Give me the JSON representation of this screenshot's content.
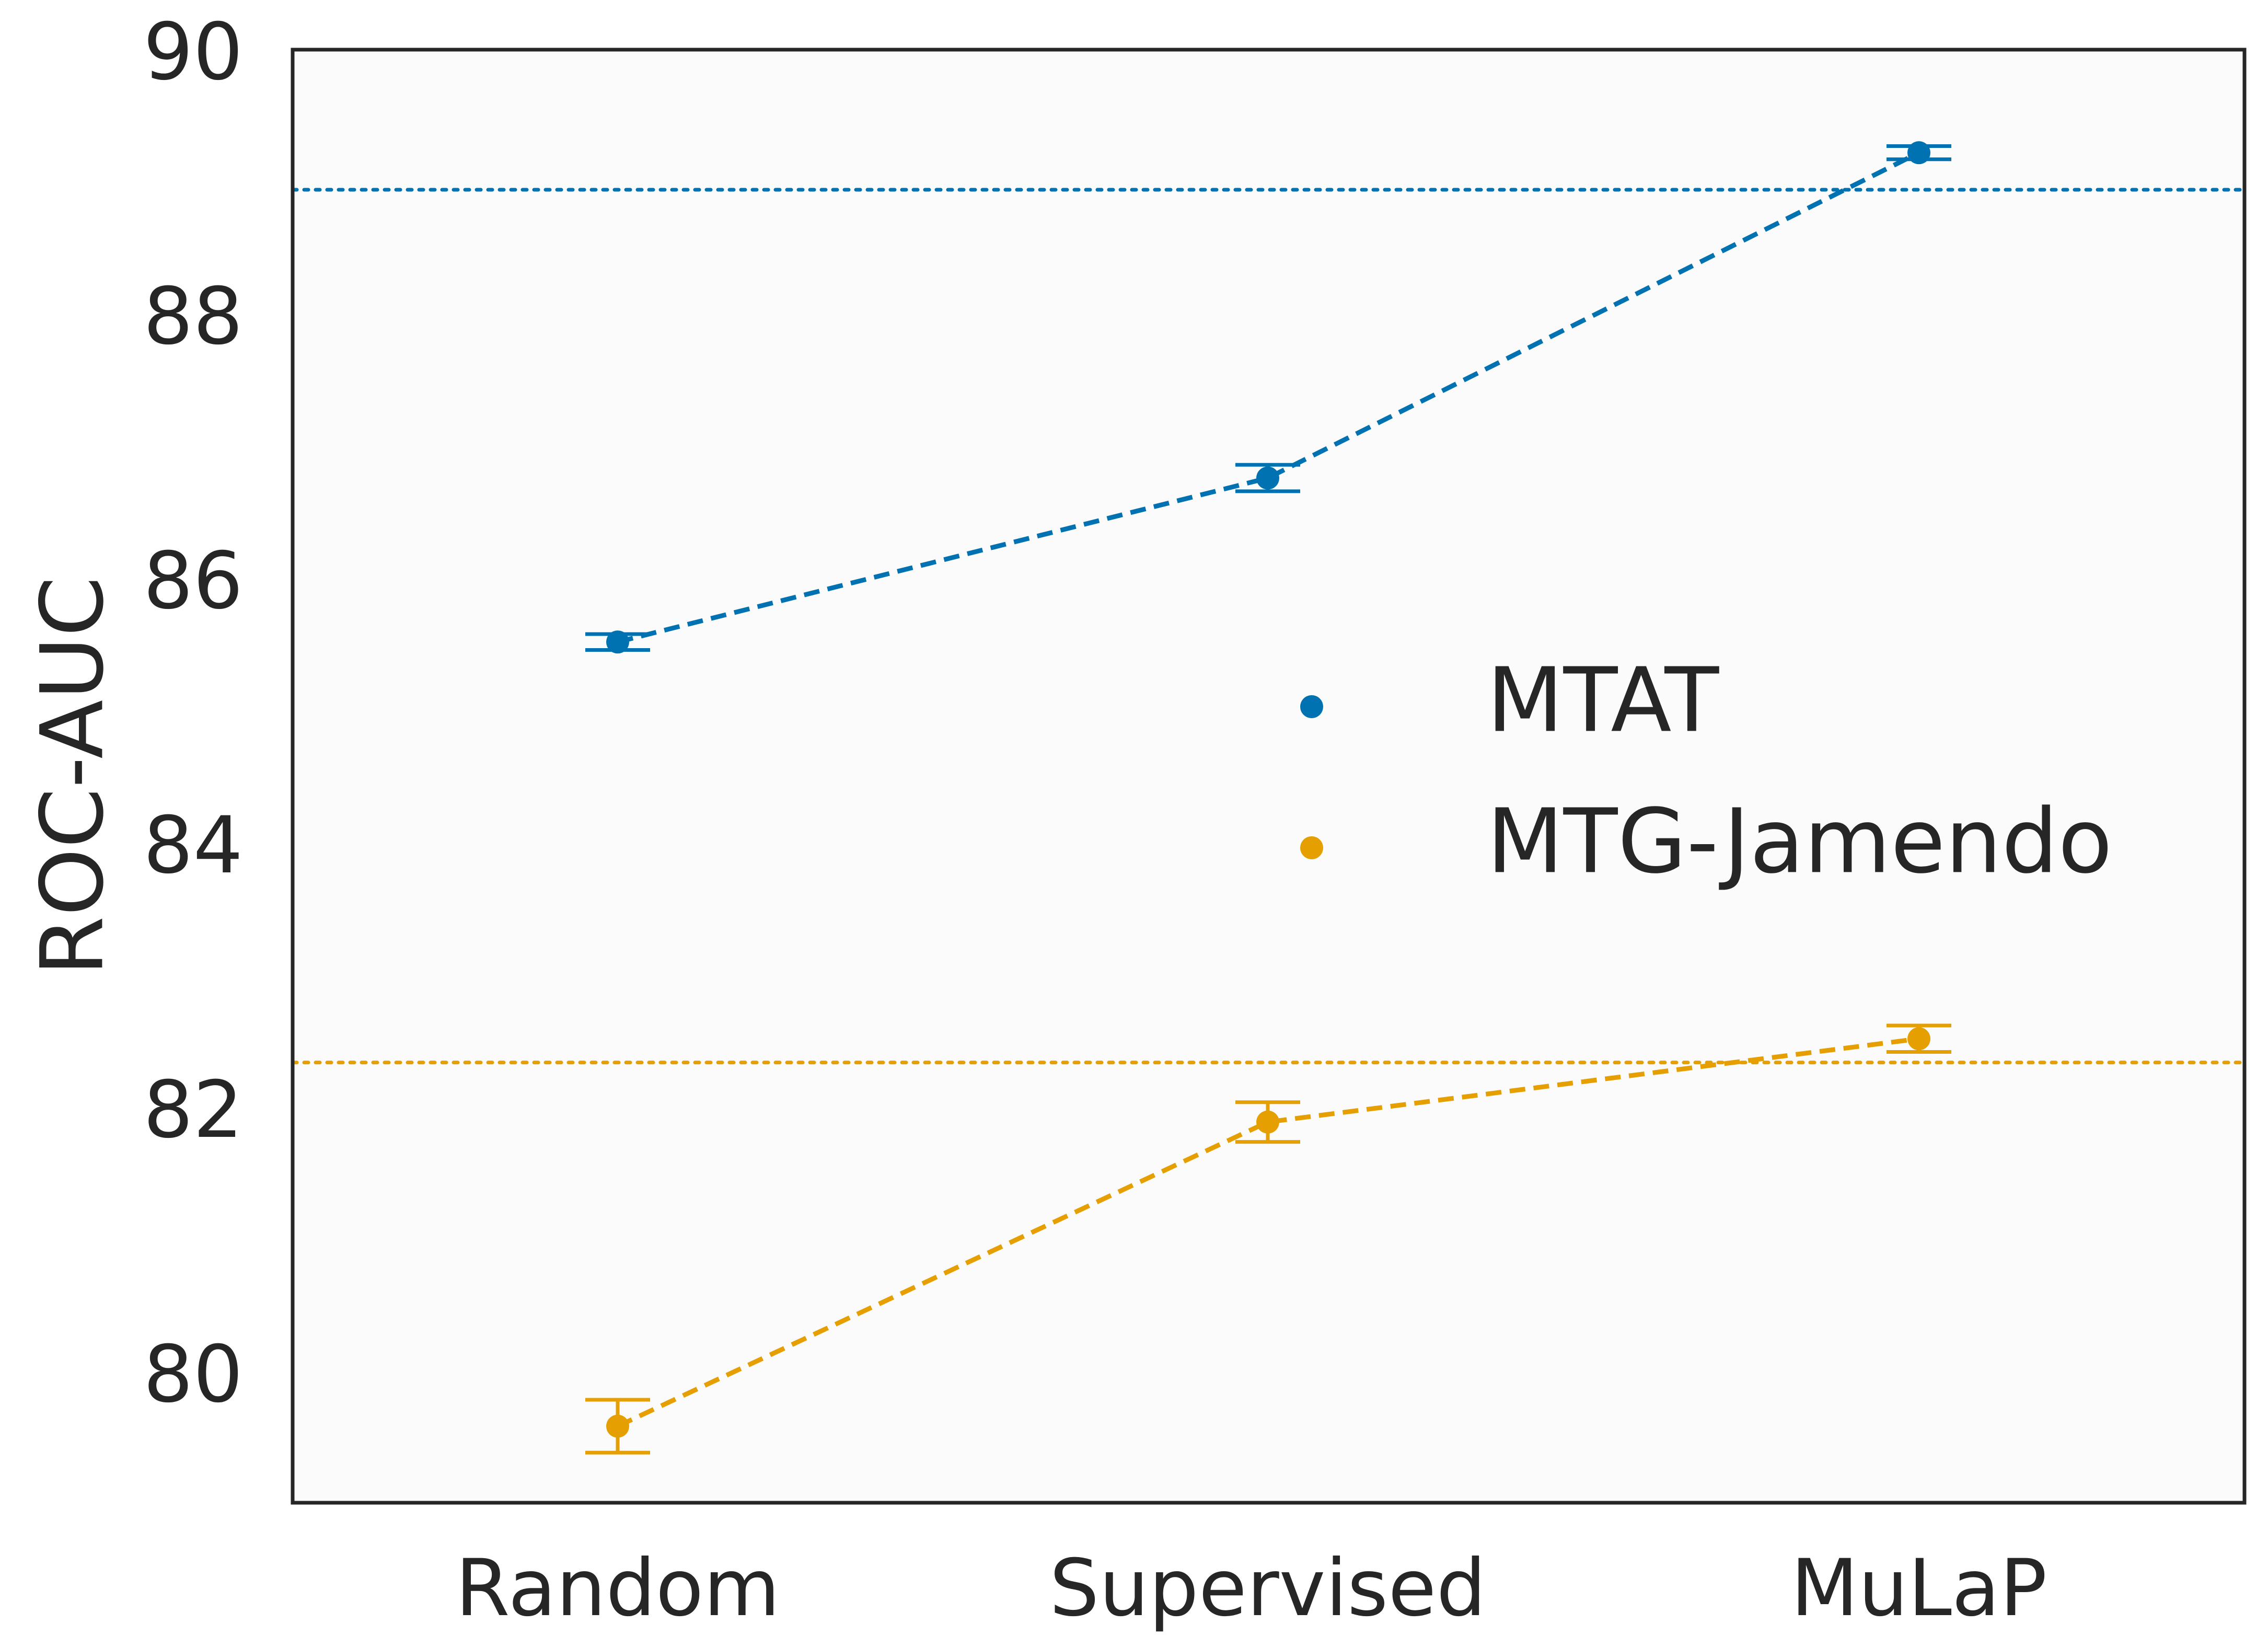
{
  "chart_data": {
    "type": "line",
    "title": "",
    "xlabel": "",
    "ylabel": "ROC-AUC",
    "categories": [
      "Random",
      "Supervised",
      "MuLaP"
    ],
    "ylim": [
      79.0,
      90.0
    ],
    "yticks": [
      80,
      82,
      84,
      86,
      88,
      90
    ],
    "ytick_labels": [
      "80",
      "82",
      "84",
      "86",
      "88",
      "90"
    ],
    "grid": false,
    "legend_position": "center-right",
    "series": [
      {
        "name": "MTAT",
        "color": "#0072b2",
        "values": [
          85.58,
          86.82,
          89.28
        ],
        "errors": [
          0.06,
          0.1,
          0.05
        ],
        "reference": 89.0
      },
      {
        "name": "MTG-Jamendo",
        "color": "#e69f00",
        "values": [
          79.65,
          81.95,
          82.58
        ],
        "errors": [
          0.2,
          0.15,
          0.1
        ],
        "reference": 82.4
      }
    ]
  }
}
